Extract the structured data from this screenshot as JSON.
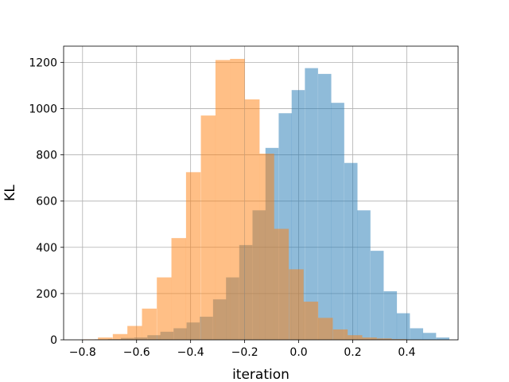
{
  "chart_data": {
    "type": "bar",
    "title": "",
    "xlabel": "iteration",
    "ylabel": "KL",
    "xlim": [
      -0.87,
      0.59
    ],
    "ylim": [
      0,
      1270
    ],
    "xticks": [
      -0.8,
      -0.6,
      -0.4,
      -0.2,
      0.0,
      0.2,
      0.4
    ],
    "xtick_labels": [
      "−0.8",
      "−0.6",
      "−0.4",
      "−0.2",
      "0.0",
      "0.2",
      "0.4"
    ],
    "yticks": [
      0,
      200,
      400,
      600,
      800,
      1000,
      1200
    ],
    "ytick_labels": [
      "0",
      "200",
      "400",
      "600",
      "800",
      "1000",
      "1200"
    ],
    "grid": true,
    "series": [
      {
        "color": "#1f77b4",
        "opacity": 0.5,
        "bin_width": 0.0486,
        "bins_start": [
          -0.755,
          -0.706,
          -0.658,
          -0.609,
          -0.56,
          -0.512,
          -0.463,
          -0.415,
          -0.366,
          -0.317,
          -0.269,
          -0.22,
          -0.171,
          -0.123,
          -0.074,
          -0.026,
          0.023,
          0.072,
          0.12,
          0.169,
          0.217,
          0.266,
          0.315,
          0.363,
          0.412,
          0.46,
          0.509
        ],
        "values": [
          2,
          3,
          8,
          10,
          20,
          35,
          50,
          75,
          100,
          175,
          270,
          410,
          560,
          830,
          980,
          1080,
          1175,
          1150,
          1025,
          765,
          560,
          385,
          210,
          115,
          50,
          30,
          10
        ]
      },
      {
        "color": "#ff7f0e",
        "opacity": 0.5,
        "bin_width": 0.0543,
        "bins_start": [
          -0.797,
          -0.743,
          -0.688,
          -0.634,
          -0.58,
          -0.525,
          -0.471,
          -0.417,
          -0.362,
          -0.308,
          -0.254,
          -0.199,
          -0.145,
          -0.091,
          -0.036,
          0.018,
          0.072,
          0.127,
          0.181,
          0.235,
          0.29,
          0.344,
          0.398
        ],
        "values": [
          2,
          10,
          25,
          60,
          135,
          270,
          440,
          725,
          970,
          1210,
          1215,
          1040,
          805,
          480,
          305,
          165,
          95,
          45,
          20,
          10,
          6,
          3,
          1
        ]
      }
    ]
  }
}
